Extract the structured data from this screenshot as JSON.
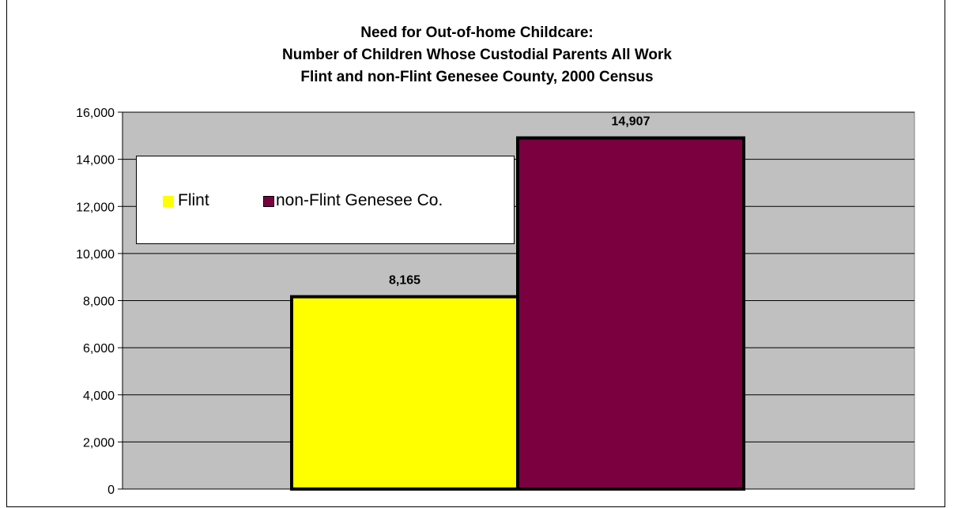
{
  "title_lines": [
    "Need for Out-of-home Childcare:",
    "Number of Children Whose Custodial Parents All Work",
    "Flint and non-Flint Genesee County, 2000 Census"
  ],
  "legend": {
    "placement": "top-left",
    "items": [
      {
        "label": "Flint",
        "color": "#ffff00"
      },
      {
        "label": "non-Flint Genesee Co.",
        "color": "#7a0040"
      }
    ]
  },
  "chart_data": {
    "type": "bar",
    "title": "Need for Out-of-home Childcare: Number of Children Whose Custodial Parents All Work Flint and non-Flint Genesee County, 2000 Census",
    "categories": [
      ""
    ],
    "series": [
      {
        "name": "Flint",
        "values": [
          8165
        ],
        "color": "#ffff00",
        "label": "8,165"
      },
      {
        "name": "non-Flint Genesee Co.",
        "values": [
          14907
        ],
        "color": "#7a0040",
        "label": "14,907"
      }
    ],
    "ylim": [
      0,
      16000
    ],
    "yticks": [
      {
        "value": 0,
        "label": "0"
      },
      {
        "value": 2000,
        "label": "2,000"
      },
      {
        "value": 4000,
        "label": "4,000"
      },
      {
        "value": 6000,
        "label": "6,000"
      },
      {
        "value": 8000,
        "label": "8,000"
      },
      {
        "value": 10000,
        "label": "10,000"
      },
      {
        "value": 12000,
        "label": "12,000"
      },
      {
        "value": 14000,
        "label": "14,000"
      },
      {
        "value": 16000,
        "label": "16,000"
      }
    ],
    "grid": true,
    "plot_background": "#c0c0c0"
  }
}
